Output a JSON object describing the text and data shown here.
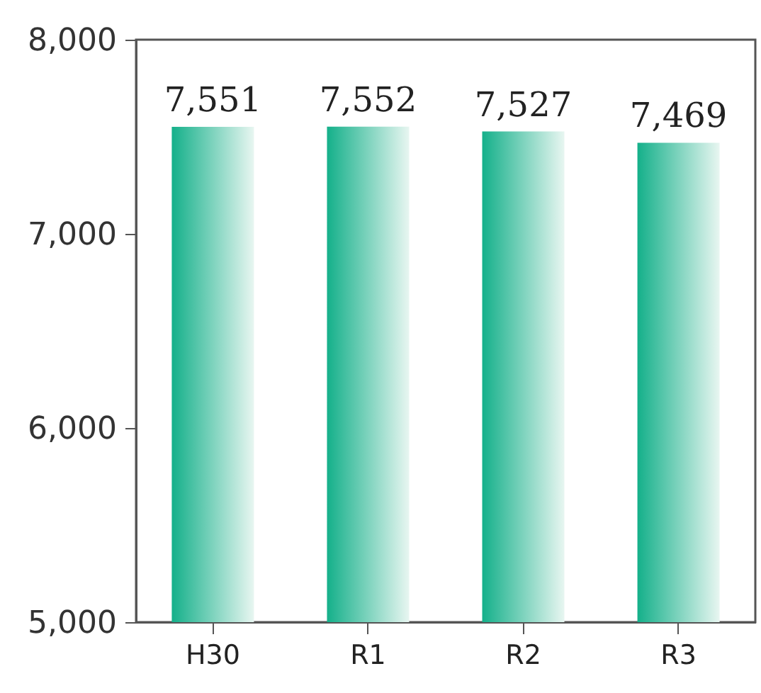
{
  "chart_data": {
    "type": "bar",
    "categories": [
      "H30",
      "R1",
      "R2",
      "R3"
    ],
    "values": [
      7551,
      7552,
      7527,
      7469
    ],
    "color": "#14b08a",
    "ylim": [
      5000,
      8000
    ],
    "yticks": [
      {
        "value": 5000,
        "label": "5,000"
      },
      {
        "value": 6000,
        "label": "6,000"
      },
      {
        "value": 7000,
        "label": "7,000"
      },
      {
        "value": 8000,
        "label": "8,000"
      }
    ],
    "value_labels": [
      "7,551",
      "7,552",
      "7,527",
      "7,469"
    ],
    "grid": false
  }
}
